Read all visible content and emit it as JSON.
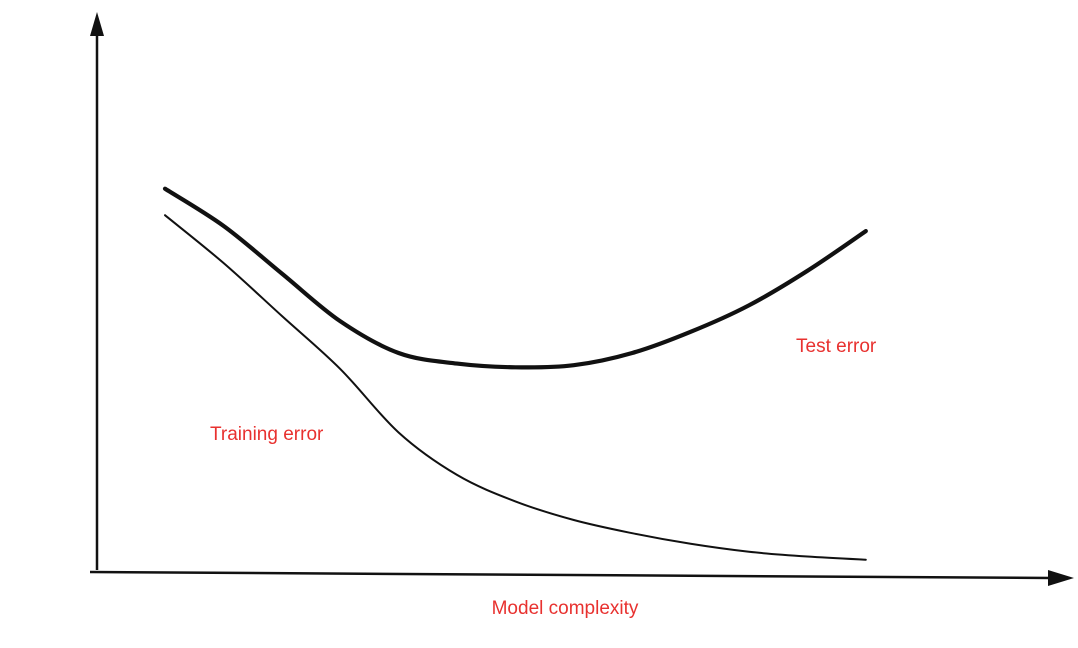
{
  "chart_data": {
    "type": "line",
    "title": "",
    "xlabel": "Model complexity",
    "ylabel": "",
    "xlim": [
      0,
      100
    ],
    "ylim": [
      0,
      100
    ],
    "grid": false,
    "legend": "none",
    "label_color": "#e8312f",
    "line_color": "#111111",
    "series": [
      {
        "name": "Test error",
        "x": [
          0,
          8,
          16,
          24,
          32,
          40,
          48,
          56,
          64,
          72,
          80,
          88,
          96
        ],
        "y": [
          71,
          64,
          55,
          46,
          40,
          38,
          37.3,
          37.7,
          40,
          44,
          49,
          55.5,
          63
        ]
      },
      {
        "name": "Training error",
        "x": [
          0,
          8,
          16,
          24,
          32,
          40,
          48,
          56,
          64,
          72,
          80,
          88,
          96
        ],
        "y": [
          66,
          57,
          47,
          37,
          25,
          17,
          12,
          8.5,
          6,
          4,
          2.5,
          1.6,
          1
        ]
      }
    ]
  }
}
